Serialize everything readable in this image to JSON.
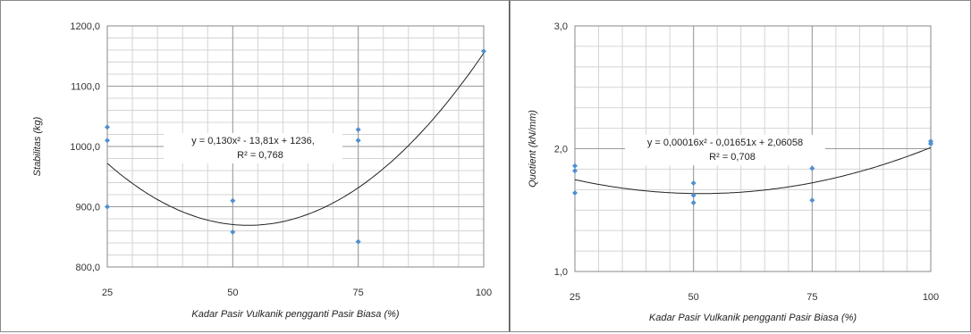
{
  "chart_data": [
    {
      "type": "scatter",
      "xlabel": "Kadar Pasir Vulkanik pengganti Pasir Biasa (%)",
      "ylabel": "Stabilitas (kg)",
      "xlim": [
        25,
        100
      ],
      "ylim": [
        800,
        1200
      ],
      "x_ticks": [
        "25",
        "50",
        "75",
        "100"
      ],
      "y_ticks": [
        "800,0",
        "900,0",
        "1000,0",
        "1100,0",
        "1200,0"
      ],
      "points": [
        {
          "x": 25,
          "y": 1032
        },
        {
          "x": 25,
          "y": 1010
        },
        {
          "x": 25,
          "y": 900
        },
        {
          "x": 50,
          "y": 910
        },
        {
          "x": 50,
          "y": 858
        },
        {
          "x": 75,
          "y": 1028
        },
        {
          "x": 75,
          "y": 1010
        },
        {
          "x": 75,
          "y": 842
        },
        {
          "x": 100,
          "y": 1158
        }
      ],
      "trendline": {
        "a": 0.13,
        "b": -13.81,
        "c": 1236
      },
      "equation": "y = 0,130x² - 13,81x + 1236,",
      "r2": "R² = 0,768",
      "grid": true,
      "marker_color": "#4f8fd1"
    },
    {
      "type": "scatter",
      "xlabel": "Kadar Pasir Vulkanik pengganti Pasir Biasa (%)",
      "ylabel": "Quotient (kN/mm)",
      "xlim": [
        25,
        100
      ],
      "ylim": [
        1.0,
        3.0
      ],
      "x_ticks": [
        "25",
        "50",
        "75",
        "100"
      ],
      "y_ticks": [
        "1,0",
        "2,0",
        "3,0"
      ],
      "points": [
        {
          "x": 25,
          "y": 1.86
        },
        {
          "x": 25,
          "y": 1.82
        },
        {
          "x": 25,
          "y": 1.64
        },
        {
          "x": 50,
          "y": 1.72
        },
        {
          "x": 50,
          "y": 1.62
        },
        {
          "x": 50,
          "y": 1.56
        },
        {
          "x": 75,
          "y": 1.9
        },
        {
          "x": 75,
          "y": 1.84
        },
        {
          "x": 75,
          "y": 1.58
        },
        {
          "x": 100,
          "y": 2.06
        },
        {
          "x": 100,
          "y": 2.04
        }
      ],
      "trendline": {
        "a": 0.00016,
        "b": -0.01651,
        "c": 2.06058
      },
      "equation": "y = 0,00016x² - 0,01651x + 2,06058",
      "r2": "R² = 0,708",
      "grid": true,
      "marker_color": "#4f8fd1"
    }
  ]
}
